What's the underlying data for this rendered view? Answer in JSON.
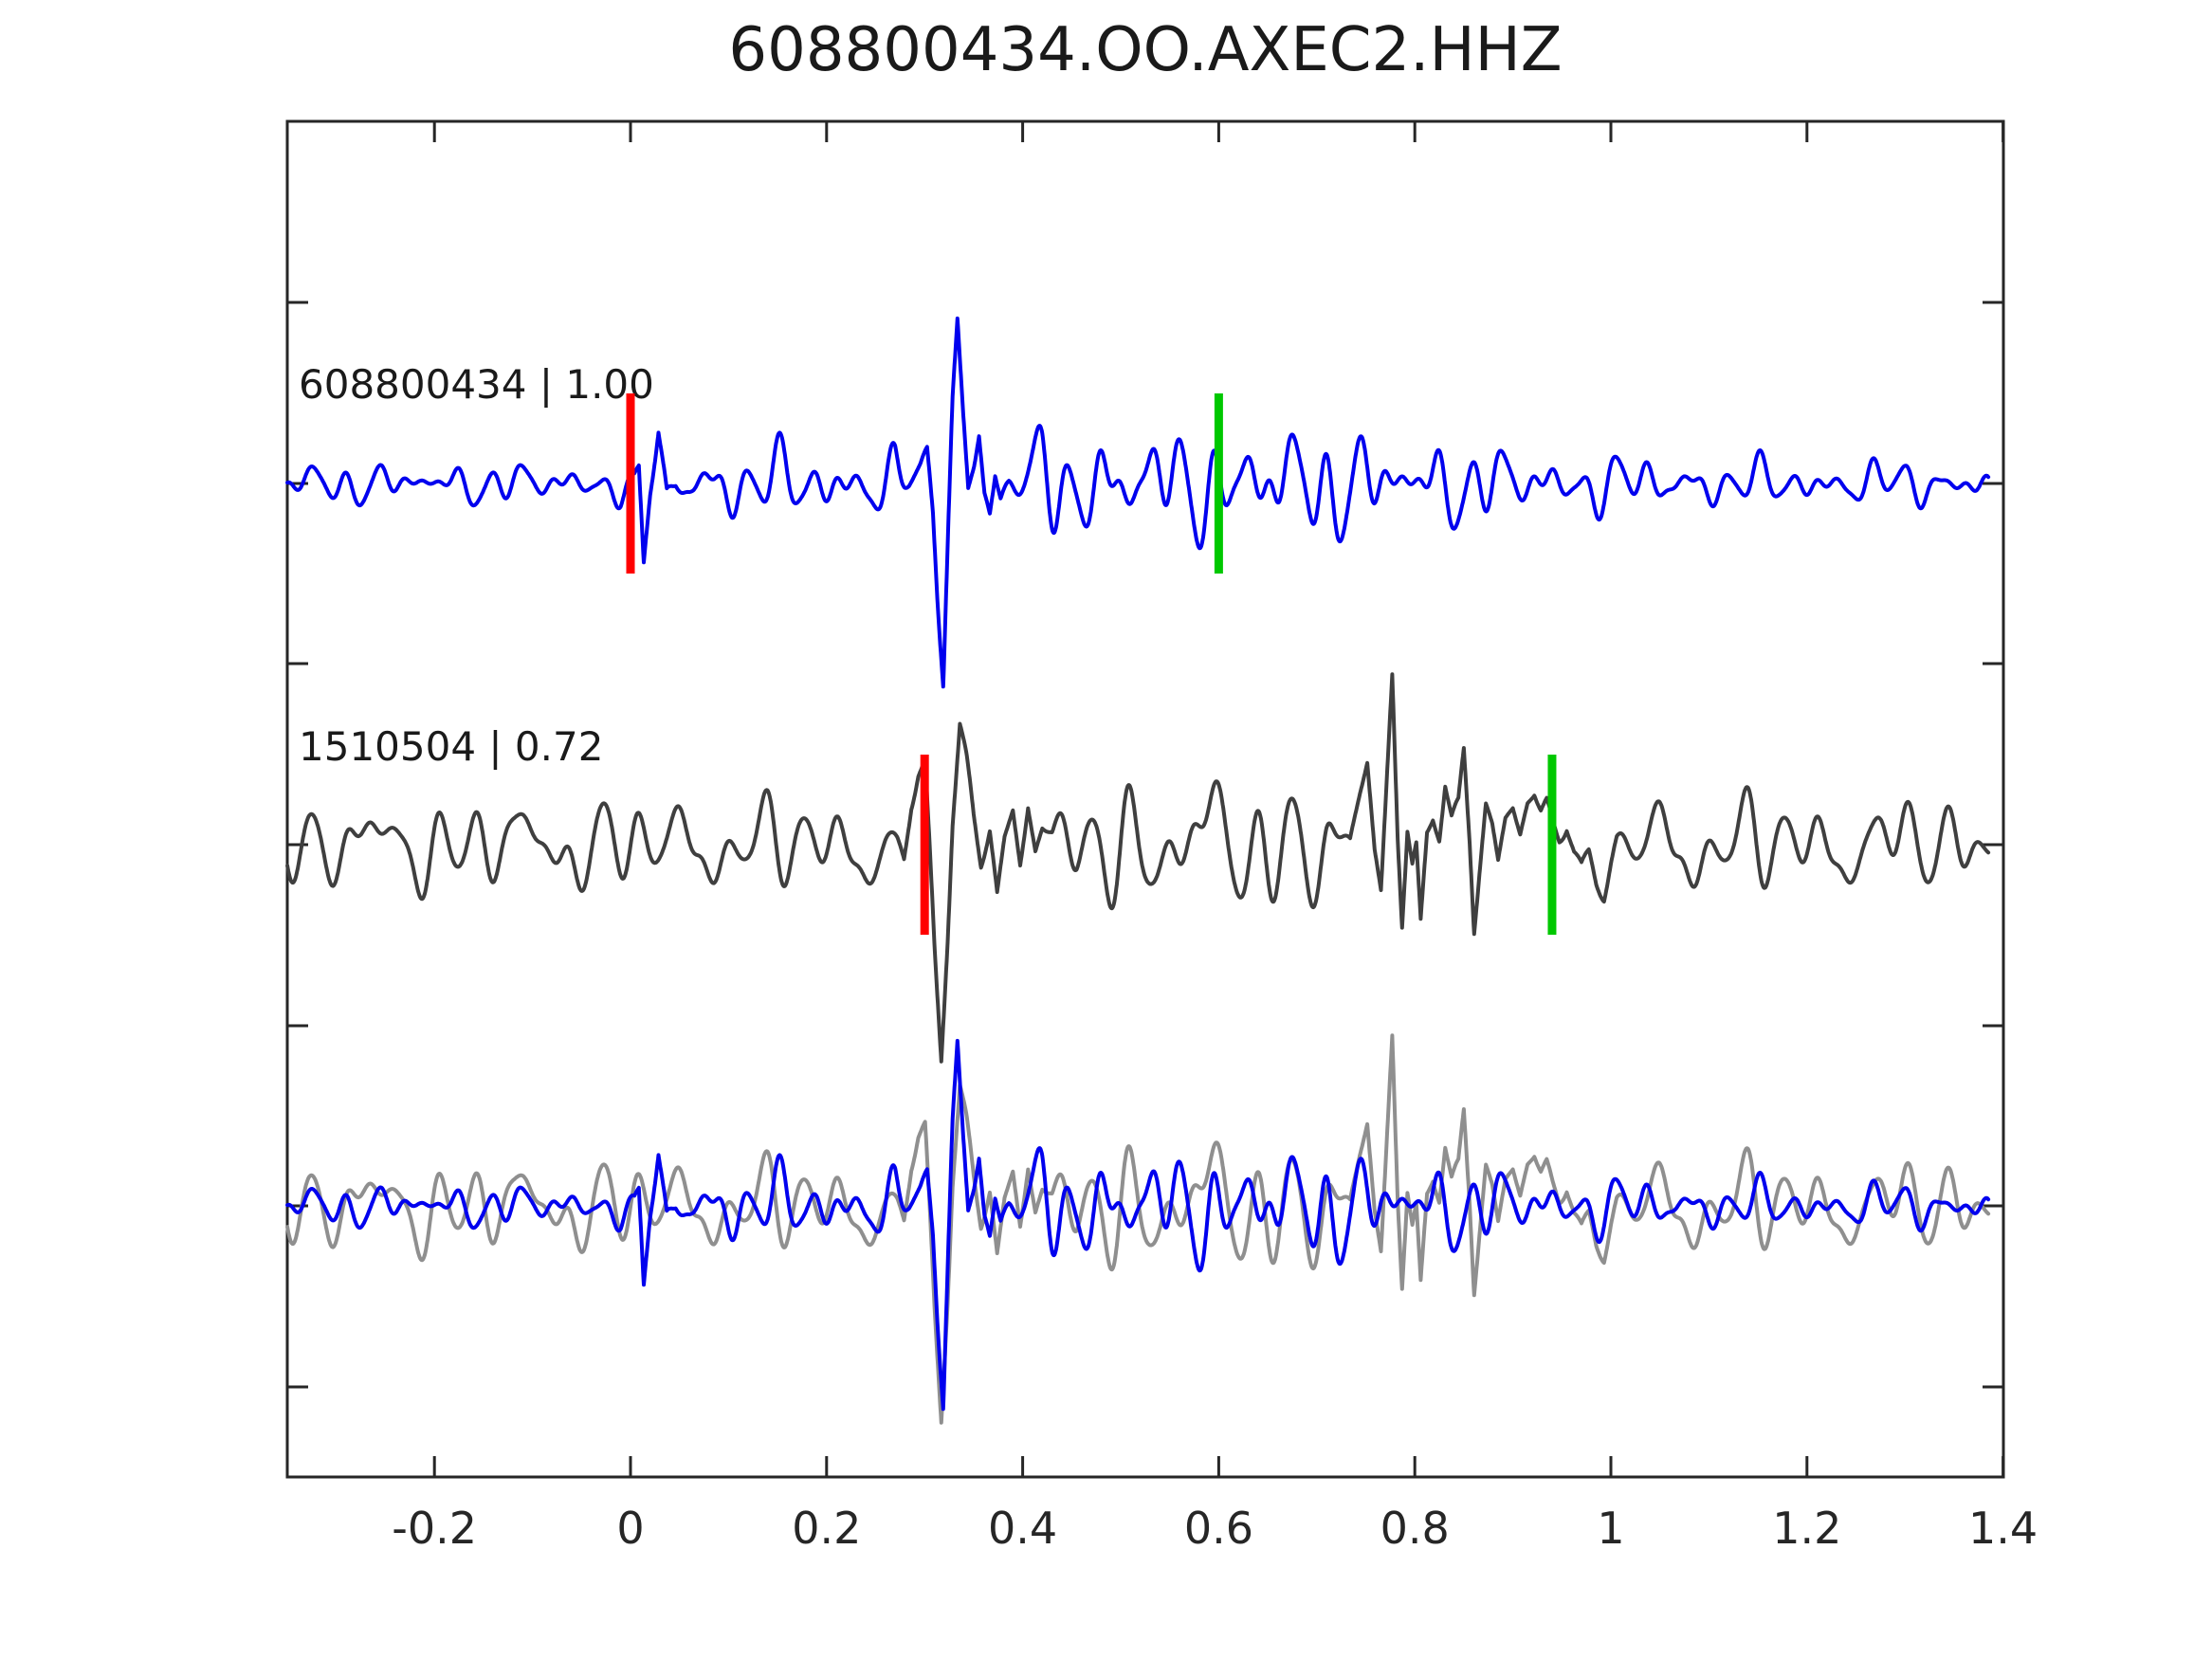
{
  "figure": {
    "background_color": "#ffffff",
    "text_color": "#1a1a1a",
    "axis_color": "#262626"
  },
  "chart_data": {
    "type": "line",
    "title": "608800434.OO.AXEC2.HHZ",
    "grid": false,
    "legend": null,
    "x_axis": {
      "range": [
        -0.35,
        1.4
      ],
      "tick_values": [
        -0.2,
        0,
        0.2,
        0.4,
        0.6,
        0.8,
        1,
        1.2,
        1.4
      ],
      "tick_labels": [
        "-0.2",
        "0",
        "0.2",
        "0.4",
        "0.6",
        "0.8",
        "1",
        "1.2",
        "1.4"
      ],
      "label": ""
    },
    "y_axis": {
      "tick_labels": [],
      "note": "unlabeled inward tick marks on left and right spines"
    },
    "rows": [
      {
        "name": "detection-trace",
        "label": "608800434 | 1.00",
        "event_id": "608800434",
        "correlation": "1.00",
        "color": "#0000ee",
        "waveform_ref": "608800434",
        "markers": [
          {
            "kind": "pick",
            "color": "#ff0000",
            "x": 0.0
          },
          {
            "kind": "window-end",
            "color": "#00c800",
            "x": 0.6
          }
        ]
      },
      {
        "name": "template-trace",
        "label": "1510504 | 0.72",
        "event_id": "1510504",
        "correlation": "0.72",
        "color": "#3f3f3f",
        "waveform_ref": "1510504",
        "markers": [
          {
            "kind": "pick",
            "color": "#ff0000",
            "x": 0.3
          },
          {
            "kind": "window-end",
            "color": "#00c800",
            "x": 0.94
          }
        ]
      },
      {
        "name": "overlay-trace",
        "label": "",
        "components": [
          {
            "waveform_ref": "1510504",
            "color": "#8f8f8f"
          },
          {
            "waveform_ref": "608800434",
            "color": "#0000ee"
          }
        ],
        "markers": []
      }
    ],
    "waveforms": {
      "608800434": {
        "seed": 11,
        "noise_freqs": [
          8,
          15,
          27,
          34,
          52
        ],
        "noise_amps": [
          0.45,
          0.6,
          1.0,
          0.85,
          0.35
        ],
        "noise_norm": 1.6,
        "envelope": [
          [
            -0.35,
            15
          ],
          [
            -0.01,
            15
          ],
          [
            0.004,
            8
          ],
          [
            0.046,
            8
          ],
          [
            0.06,
            27
          ],
          [
            0.27,
            27
          ],
          [
            0.284,
            8
          ],
          [
            0.386,
            9
          ],
          [
            0.42,
            40
          ],
          [
            0.56,
            38
          ],
          [
            0.66,
            44
          ],
          [
            0.78,
            36
          ],
          [
            0.92,
            24
          ],
          [
            1.1,
            18
          ],
          [
            1.385,
            16
          ]
        ],
        "events": [
          [
            [
              0.004,
              0
            ],
            [
              0.0085,
              -10
            ],
            [
              0.0135,
              88
            ],
            [
              0.02,
              10
            ],
            [
              0.0285,
              -54
            ],
            [
              0.037,
              14
            ],
            [
              0.046,
              0
            ]
          ],
          [
            [
              0.284,
              0
            ],
            [
              0.2955,
              -14
            ],
            [
              0.3025,
              -30
            ],
            [
              0.3085,
              30
            ],
            [
              0.3135,
              120
            ],
            [
              0.319,
              203
            ],
            [
              0.3245,
              30
            ],
            [
              0.3285,
              -90
            ],
            [
              0.3335,
              -172
            ],
            [
              0.3395,
              -70
            ],
            [
              0.3445,
              6
            ],
            [
              0.3505,
              -20
            ],
            [
              0.3555,
              -52
            ],
            [
              0.361,
              10
            ],
            [
              0.3665,
              30
            ],
            [
              0.372,
              -12
            ],
            [
              0.3775,
              16
            ],
            [
              0.386,
              0
            ]
          ]
        ]
      },
      "1510504": {
        "seed": 47,
        "noise_freqs": [
          7,
          13,
          24,
          30,
          44
        ],
        "noise_amps": [
          0.5,
          0.75,
          1.0,
          0.7,
          0.25
        ],
        "noise_norm": 1.55,
        "envelope": [
          [
            -0.35,
            34
          ],
          [
            0.26,
            36
          ],
          [
            0.272,
            10
          ],
          [
            0.43,
            12
          ],
          [
            0.455,
            48
          ],
          [
            0.71,
            52
          ],
          [
            0.734,
            10
          ],
          [
            1.006,
            10
          ],
          [
            1.04,
            40
          ],
          [
            1.2,
            36
          ],
          [
            1.385,
            32
          ]
        ],
        "events": [
          [
            [
              0.272,
              0
            ],
            [
              0.279,
              20
            ],
            [
              0.2865,
              -40
            ],
            [
              0.2935,
              -70
            ],
            [
              0.3005,
              -76
            ],
            [
              0.3055,
              20
            ],
            [
              0.3105,
              120
            ],
            [
              0.317,
              221
            ],
            [
              0.3235,
              90
            ],
            [
              0.3285,
              -30
            ],
            [
              0.336,
              -125
            ],
            [
              0.3425,
              -85
            ],
            [
              0.35,
              -25
            ],
            [
              0.3575,
              18
            ],
            [
              0.3665,
              -18
            ],
            [
              0.374,
              51
            ],
            [
              0.3815,
              -10
            ],
            [
              0.39,
              -41
            ],
            [
              0.3975,
              13
            ],
            [
              0.4055,
              -47
            ],
            [
              0.413,
              5
            ],
            [
              0.42,
              -15
            ],
            [
              0.43,
              0
            ]
          ],
          [
            [
              0.734,
              0
            ],
            [
              0.744,
              -50
            ],
            [
              0.7515,
              -82
            ],
            [
              0.759,
              10
            ],
            [
              0.7655,
              51
            ],
            [
              0.771,
              -60
            ],
            [
              0.777,
              -185
            ],
            [
              0.7825,
              -20
            ],
            [
              0.787,
              71
            ],
            [
              0.7925,
              -25
            ],
            [
              0.7975,
              20
            ],
            [
              0.8015,
              5
            ],
            [
              0.806,
              88
            ],
            [
              0.8125,
              -10
            ],
            [
              0.8185,
              -30
            ],
            [
              0.825,
              -10
            ],
            [
              0.831,
              -64
            ],
            [
              0.8375,
              -25
            ],
            [
              0.8445,
              -40
            ],
            [
              0.85,
              -100
            ],
            [
              0.856,
              -10
            ],
            [
              0.8605,
              83
            ],
            [
              0.8665,
              20
            ],
            [
              0.8725,
              -40
            ],
            [
              0.879,
              -15
            ],
            [
              0.885,
              25
            ],
            [
              0.8925,
              -20
            ],
            [
              0.9,
              -35
            ],
            [
              0.9075,
              -10
            ],
            [
              0.915,
              -45
            ],
            [
              0.922,
              -57
            ],
            [
              0.9285,
              -40
            ],
            [
              0.9345,
              -50
            ],
            [
              0.9405,
              -30
            ],
            [
              0.9475,
              -15
            ],
            [
              0.955,
              -25
            ],
            [
              0.9625,
              10
            ],
            [
              0.97,
              30
            ],
            [
              0.9775,
              15
            ],
            [
              0.985,
              40
            ],
            [
              0.993,
              50
            ],
            [
              1.0,
              20
            ],
            [
              1.006,
              0
            ]
          ]
        ]
      }
    }
  }
}
